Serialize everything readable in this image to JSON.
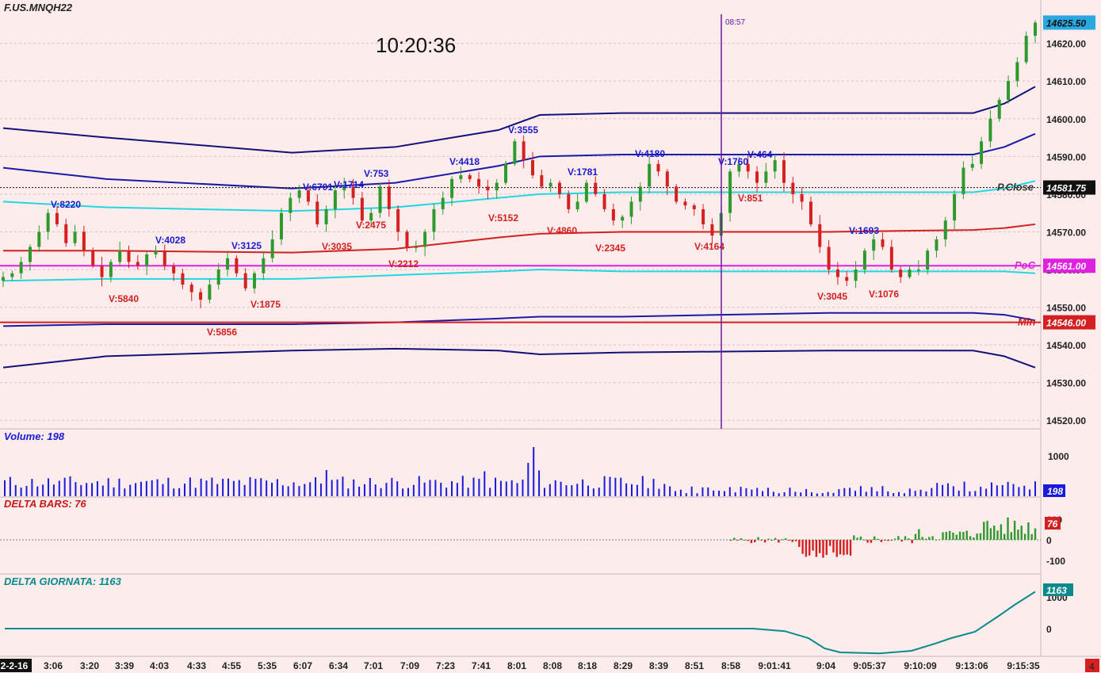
{
  "header": {
    "symbol": "F.US.MNQH22",
    "clock": "10:20:36",
    "vline_label": "08:57",
    "corner_badge": "4"
  },
  "colors": {
    "background": "#fdecec",
    "up": "#2e9a2e",
    "down": "#d42020",
    "band_outer": "#12127a",
    "band_mid": "#1a1aa8",
    "cyan": "#22d8e0",
    "vwap": "#d42020",
    "poc": "#e020e0",
    "vline": "#6a1aa0",
    "volume": "#1a1add",
    "delta_cum": "#0a8a8a"
  },
  "chart_data": [
    {
      "type": "candlestick",
      "title": "F.US.MNQH22",
      "ylim": [
        14515,
        14630
      ],
      "y_ticks": [
        "14520.00",
        "14530.00",
        "14540.00",
        "14550.00",
        "14560.00",
        "14570.00",
        "14580.00",
        "14590.00",
        "14600.00",
        "14610.00",
        "14620.00"
      ],
      "y_values": [
        14520,
        14530,
        14540,
        14550,
        14560,
        14570,
        14580,
        14590,
        14600,
        14610,
        14620
      ],
      "x_ticks": [
        "2-2-16",
        "3:06",
        "3:20",
        "3:39",
        "4:03",
        "4:33",
        "4:55",
        "5:35",
        "6:07",
        "6:34",
        "7:01",
        "7:09",
        "7:23",
        "7:41",
        "8:01",
        "8:08",
        "8:18",
        "8:29",
        "8:39",
        "8:51",
        "8:58",
        "9:01:41",
        "9:04",
        "9:05:37",
        "9:10:09",
        "9:13:06",
        "9:15:35"
      ],
      "close_path": [
        14558,
        14559,
        14562,
        14566,
        14570,
        14575,
        14572,
        14567,
        14570,
        14565,
        14561,
        14558,
        14562,
        14565,
        14562,
        14561,
        14564,
        14565,
        14561,
        14559,
        14556,
        14554,
        14552,
        14556,
        14560,
        14563,
        14559,
        14555,
        14559,
        14563,
        14568,
        14575,
        14579,
        14581,
        14578,
        14572,
        14576,
        14581,
        14582,
        14579,
        14573,
        14575,
        14582,
        14576,
        14570,
        14566,
        14566,
        14570,
        14576,
        14579,
        14584,
        14585,
        14584,
        14582,
        14581,
        14583,
        14588,
        14594,
        14589,
        14585,
        14582,
        14583,
        14580,
        14576,
        14578,
        14583,
        14580,
        14576,
        14573,
        14574,
        14578,
        14582,
        14588,
        14586,
        14582,
        14578,
        14577,
        14576,
        14572,
        14569,
        14575,
        14586,
        14588,
        14586,
        14583,
        14586,
        14589,
        14583,
        14580,
        14578,
        14572,
        14566,
        14560,
        14558,
        14557,
        14560,
        14565,
        14568,
        14566,
        14560,
        14558,
        14560,
        14560,
        14565,
        14568,
        14573,
        14580,
        14587,
        14588,
        14594,
        14600,
        14605,
        14610,
        14615,
        14622,
        14625.5
      ],
      "series": [
        {
          "name": "P.Close",
          "value": 14581.75
        },
        {
          "name": "PoC",
          "value": 14561.0
        },
        {
          "name": "Min",
          "value": 14546.0
        }
      ],
      "price_labels": [
        "14625.50",
        "14581.75",
        "14561.00",
        "14546.00"
      ],
      "line_labels": [
        "P.Close",
        "PoC",
        "Min"
      ],
      "annotations_up": [
        "V:8220",
        "V:4028",
        "V:3125",
        "V:6701",
        "V:1714",
        "V:753",
        "V:4418",
        "V:3555",
        "V:1781",
        "V:4180",
        "V:1760",
        "V:464",
        "V:1693"
      ],
      "annotations_down": [
        "V:5840",
        "V:5856",
        "V:1875",
        "V:3035",
        "V:2475",
        "V:2212",
        "V:5152",
        "V:4860",
        "V:2345",
        "V:4164",
        "V:851",
        "V:3045",
        "V:1076"
      ]
    },
    {
      "type": "bar",
      "title": "Volume: 198",
      "y_ticks": [
        "1000"
      ],
      "ylim": [
        0,
        1300
      ],
      "last_label": "198"
    },
    {
      "type": "bar",
      "title": "DELTA BARS: 76",
      "y_ticks": [
        "100",
        "0",
        "-100"
      ],
      "ylim": [
        -130,
        130
      ],
      "last_label": "76"
    },
    {
      "type": "line",
      "title": "DELTA GIORNATA: 1163",
      "y_ticks": [
        "1000",
        "0"
      ],
      "ylim": [
        -1200,
        1500
      ],
      "last_label": "1163"
    }
  ]
}
